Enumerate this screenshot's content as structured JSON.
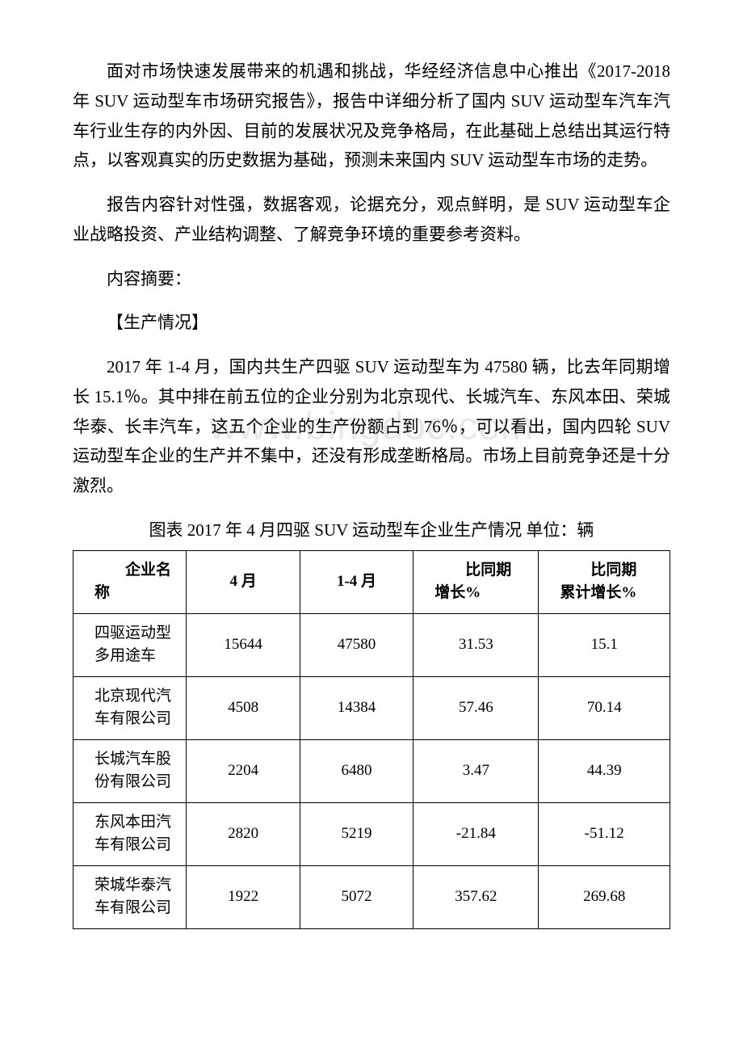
{
  "colors": {
    "text": "#000000",
    "background": "#ffffff",
    "border": "#000000",
    "watermark": "#e8e8e8"
  },
  "typography": {
    "body_font": "SimSun",
    "body_size_pt": 16,
    "line_height": 1.75,
    "table_size_pt": 14
  },
  "watermark": "www.bingdoc.com",
  "paragraphs": {
    "p1": "面对市场快速发展带来的机遇和挑战，华经经济信息中心推出《2017-2018 年 SUV 运动型车市场研究报告》，报告中详细分析了国内 SUV 运动型车汽车汽车行业生存的内外因、目前的发展状况及竞争格局，在此基础上总结出其运行特点，以客观真实的历史数据为基础，预测未来国内 SUV 运动型车市场的走势。",
    "p2": "报告内容针对性强，数据客观，论据充分，观点鲜明，是 SUV 运动型车企业战略投资、产业结构调整、了解竞争环境的重要参考资料。",
    "p3": "内容摘要：",
    "p4": "【生产情况】",
    "p5": "2017 年 1-4 月，国内共生产四驱 SUV 运动型车为 47580 辆，比去年同期增长 15.1％。其中排在前五位的企业分别为北京现代、长城汽车、东风本田、荣城华泰、长丰汽车，这五个企业的生产份额占到 76％，可以看出，国内四轮 SUV 运动型车企业的生产并不集中，还没有形成垄断格局。市场上目前竞争还是十分激烈。",
    "caption": "图表 2017 年 4 月四驱 SUV 运动型车企业生产情况 单位：辆"
  },
  "table": {
    "type": "table",
    "columns": [
      {
        "key": "name",
        "label": "企业名称",
        "align": "left"
      },
      {
        "key": "m4",
        "label": "4 月",
        "align": "center"
      },
      {
        "key": "m1_4",
        "label": "1-4 月",
        "align": "center"
      },
      {
        "key": "yoy",
        "label": "比同期增长%",
        "align": "center"
      },
      {
        "key": "cyoy",
        "label": "比同期累计增长%",
        "align": "center"
      }
    ],
    "col_widths_pct": [
      19,
      19,
      19,
      21,
      22
    ],
    "header_two_line": {
      "name": [
        "　　企业名",
        "称"
      ],
      "m4": [
        "4 月"
      ],
      "m1_4": [
        "1-4 月"
      ],
      "yoy": [
        "　　比同期",
        "增长%"
      ],
      "cyoy": [
        "　　比同期",
        "累计增长%"
      ]
    },
    "rows": [
      {
        "name": "四驱运动型多用途车",
        "m4": "15644",
        "m1_4": "47580",
        "yoy": "31.53",
        "cyoy": "15.1"
      },
      {
        "name": "北京现代汽车有限公司",
        "m4": "4508",
        "m1_4": "14384",
        "yoy": "57.46",
        "cyoy": "70.14"
      },
      {
        "name": "长城汽车股份有限公司",
        "m4": "2204",
        "m1_4": "6480",
        "yoy": "3.47",
        "cyoy": "44.39"
      },
      {
        "name": "东风本田汽车有限公司",
        "m4": "2820",
        "m1_4": "5219",
        "yoy": "-21.84",
        "cyoy": "-51.12"
      },
      {
        "name": "荣城华泰汽车有限公司",
        "m4": "1922",
        "m1_4": "5072",
        "yoy": "357.62",
        "cyoy": "269.68"
      }
    ]
  }
}
